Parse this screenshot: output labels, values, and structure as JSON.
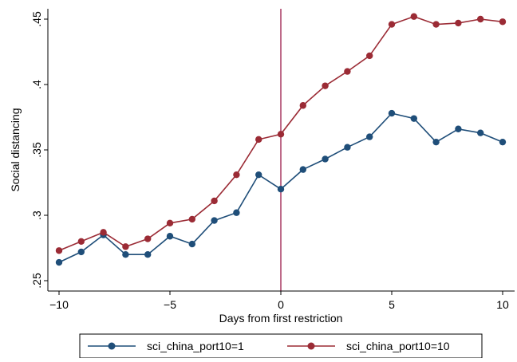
{
  "chart_data": {
    "type": "line",
    "title": "",
    "xlabel": "Days from first restriction",
    "ylabel": "Social distancing",
    "xlim": [
      -10,
      10
    ],
    "ylim": [
      0.25,
      0.45
    ],
    "x_ticks": [
      -10,
      -5,
      0,
      5,
      10
    ],
    "x_tick_labels": [
      "−10",
      "−5",
      "0",
      "5",
      "10"
    ],
    "y_ticks": [
      0.25,
      0.3,
      0.35,
      0.4,
      0.45
    ],
    "y_tick_labels": [
      ".25",
      ".3",
      ".35",
      ".4",
      ".45"
    ],
    "grid": false,
    "legend_position": "bottom",
    "reference_line": {
      "x": 0,
      "color": "#9b1b4a"
    },
    "x": [
      -10,
      -9,
      -8,
      -7,
      -6,
      -5,
      -4,
      -3,
      -2,
      -1,
      0,
      1,
      2,
      3,
      4,
      5,
      6,
      7,
      8,
      9,
      10
    ],
    "series": [
      {
        "name": "sci_china_port10=1",
        "color": "#1f4e79",
        "values": [
          0.264,
          0.272,
          0.285,
          0.27,
          0.27,
          0.284,
          0.278,
          0.296,
          0.302,
          0.331,
          0.32,
          0.335,
          0.343,
          0.352,
          0.36,
          0.378,
          0.374,
          0.356,
          0.366,
          0.363,
          0.356
        ]
      },
      {
        "name": "sci_china_port10=10",
        "color": "#9b2b35",
        "values": [
          0.273,
          0.28,
          0.287,
          0.276,
          0.282,
          0.294,
          0.297,
          0.311,
          0.331,
          0.358,
          0.362,
          0.384,
          0.399,
          0.41,
          0.422,
          0.446,
          0.452,
          0.446,
          0.447,
          0.45,
          0.448
        ]
      }
    ]
  }
}
